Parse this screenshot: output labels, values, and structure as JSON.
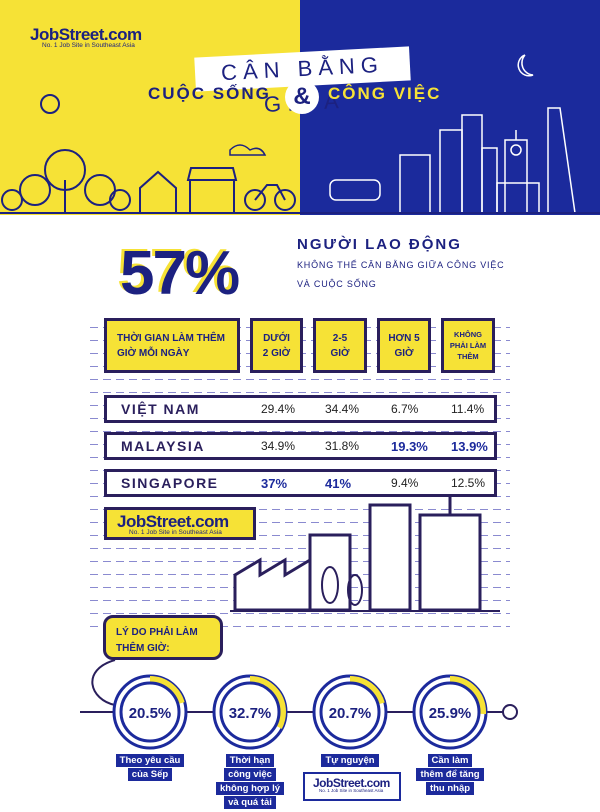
{
  "brand": {
    "name": "JobStreet.com",
    "tagline": "No. 1 Job Site in Southeast Asia",
    "colors": {
      "yellow": "#f6e236",
      "navy": "#1b2a9c"
    }
  },
  "header": {
    "banner": "CÂN BẰNG GIỮA",
    "left": "CUỘC SỐNG",
    "amp": "&",
    "right": "CÔNG VIỆC"
  },
  "stat": {
    "value": "57%",
    "title": "NGƯỜI LAO ĐỘNG",
    "line1": "KHÔNG THỂ CÂN BẰNG GIỮA CÔNG VIỆC",
    "line2": "VÀ CUỘC SỐNG"
  },
  "table": {
    "header": [
      "THỜI GIAN LÀM THÊM GIỜ MỖI NGÀY",
      "DƯỚI 2 GIỜ",
      "2-5 GIỜ",
      "HƠN 5 GIỜ",
      "KHÔNG PHẢI LÀM THÊM"
    ],
    "rows": [
      {
        "country": "VIỆT NAM",
        "values": [
          "29.4%",
          "34.4%",
          "6.7%",
          "11.4%"
        ]
      },
      {
        "country": "MALAYSIA",
        "values": [
          "34.9%",
          "31.8%",
          "19.3%",
          "13.9%"
        ]
      },
      {
        "country": "SINGAPORE",
        "values": [
          "37%",
          "41%",
          "9.4%",
          "12.5%"
        ]
      }
    ]
  },
  "reasons": {
    "title": "LÝ DO PHẢI LÀM THÊM GIỜ:",
    "items": [
      {
        "value": "20.5%",
        "fraction": 0.205,
        "label": [
          "Theo yêu cầu",
          "của Sếp"
        ]
      },
      {
        "value": "32.7%",
        "fraction": 0.327,
        "label": [
          "Thời hạn",
          "công việc",
          "không hợp lý",
          "và quá tải"
        ]
      },
      {
        "value": "20.7%",
        "fraction": 0.207,
        "label": [
          "Tự nguyện"
        ]
      },
      {
        "value": "25.9%",
        "fraction": 0.259,
        "label": [
          "Cần làm",
          "thêm để tăng",
          "thu nhập"
        ]
      }
    ]
  }
}
